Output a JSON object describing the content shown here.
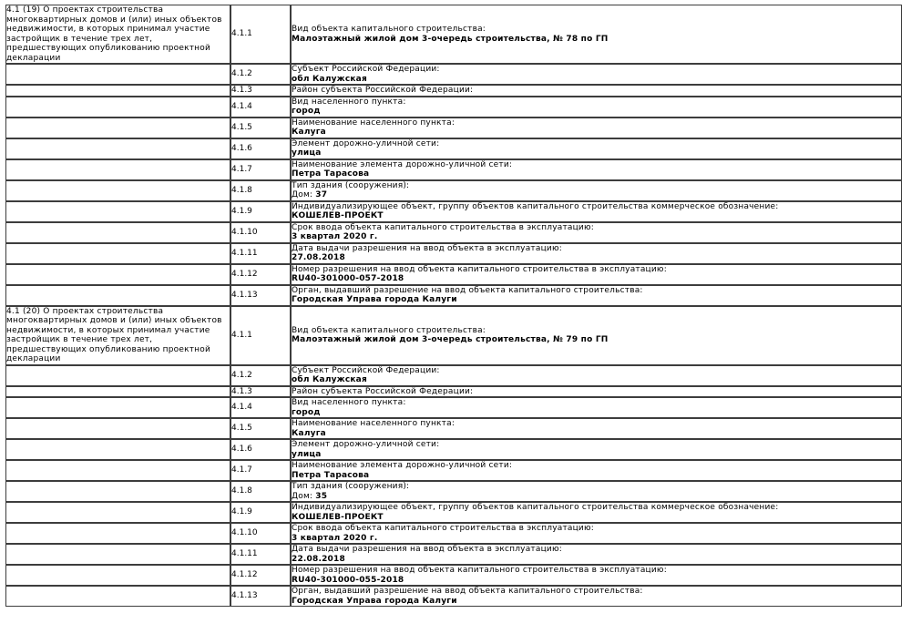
{
  "page": {
    "background_color": "#ffffff",
    "text_color": "#000000",
    "border_color": "#3d3d3d"
  },
  "table": {
    "sections": [
      {
        "description": "4.1 (19) О проектах строительства\nмногоквартирных домов и (или) иных объектов\nнедвижимости, в которых принимал участие\nзастройщик в течение трех лет,\nпредшествующих опубликованию проектной\nдекларации",
        "rows": [
          {
            "num": "4.1.1",
            "label": "Вид объекта капитального строительства:",
            "value": "Малоэтажный жилой дом 3-очередь строительства, № 78 по ГП"
          },
          {
            "num": "4.1.2",
            "label": "Субъект Российской Федерации:",
            "value": "обл Калужская"
          },
          {
            "num": "4.1.3",
            "label": "Район субъекта Российской Федерации:",
            "value": null
          },
          {
            "num": "4.1.4",
            "label": "Вид населенного пункта:",
            "value": "город"
          },
          {
            "num": "4.1.5",
            "label": "Наименование населенного пункта:",
            "value": "Калуга"
          },
          {
            "num": "4.1.6",
            "label": "Элемент дорожно-уличной сети:",
            "value": "улица"
          },
          {
            "num": "4.1.7",
            "label": "Наименование элемента дорожно-уличной сети:",
            "value": "Петра Тарасова"
          },
          {
            "num": "4.1.8",
            "label": "Тип здания (сооружения):",
            "value_prefix": "Дом: ",
            "value": "37"
          },
          {
            "num": "4.1.9",
            "label": "Индивидуализирующее объект, группу объектов капитального строительства коммерческое обозначение:",
            "value": "КОШЕЛЕВ-ПРОЕКТ"
          },
          {
            "num": "4.1.10",
            "label": "Срок ввода объекта капитального строительства в эксплуатацию:",
            "value": "3 квартал 2020 г."
          },
          {
            "num": "4.1.11",
            "label": "Дата выдачи разрешения на ввод объекта в эксплуатацию:",
            "value": "27.08.2018"
          },
          {
            "num": "4.1.12",
            "label": "Номер разрешения на ввод объекта капитального строительства в эксплуатацию:",
            "value": "RU40-301000-057-2018"
          },
          {
            "num": "4.1.13",
            "label": "Орган, выдавший разрешение на ввод объекта капитального строительства:",
            "value": "Городская Управа города Калуги"
          }
        ]
      },
      {
        "description": "4.1 (20) О проектах строительства\nмногоквартирных домов и (или) иных объектов\nнедвижимости, в которых принимал участие\nзастройщик в течение трех лет,\nпредшествующих опубликованию проектной\nдекларации",
        "rows": [
          {
            "num": "4.1.1",
            "label": "Вид объекта капитального строительства:",
            "value": "Малоэтажный жилой дом 3-очередь строительства, № 79 по ГП"
          },
          {
            "num": "4.1.2",
            "label": "Субъект Российской Федерации:",
            "value": "обл Калужская"
          },
          {
            "num": "4.1.3",
            "label": "Район субъекта Российской Федерации:",
            "value": null
          },
          {
            "num": "4.1.4",
            "label": "Вид населенного пункта:",
            "value": "город"
          },
          {
            "num": "4.1.5",
            "label": "Наименование населенного пункта:",
            "value": "Калуга"
          },
          {
            "num": "4.1.6",
            "label": "Элемент дорожно-уличной сети:",
            "value": "улица"
          },
          {
            "num": "4.1.7",
            "label": "Наименование элемента дорожно-уличной сети:",
            "value": "Петра Тарасова"
          },
          {
            "num": "4.1.8",
            "label": "Тип здания (сооружения):",
            "value_prefix": "Дом: ",
            "value": "35"
          },
          {
            "num": "4.1.9",
            "label": "Индивидуализирующее объект, группу объектов капитального строительства коммерческое обозначение:",
            "value": "КОШЕЛЕВ-ПРОЕКТ"
          },
          {
            "num": "4.1.10",
            "label": "Срок ввода объекта капитального строительства в эксплуатацию:",
            "value": "3 квартал 2020 г."
          },
          {
            "num": "4.1.11",
            "label": "Дата выдачи разрешения на ввод объекта в эксплуатацию:",
            "value": "22.08.2018"
          },
          {
            "num": "4.1.12",
            "label": "Номер разрешения на ввод объекта капитального строительства в эксплуатацию:",
            "value": "RU40-301000-055-2018"
          },
          {
            "num": "4.1.13",
            "label": "Орган, выдавший разрешение на ввод объекта капитального строительства:",
            "value": "Городская Управа города Калуги"
          }
        ]
      }
    ]
  }
}
